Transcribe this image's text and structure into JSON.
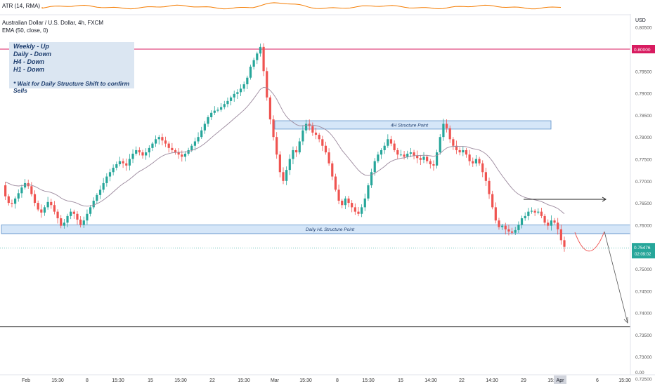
{
  "chart_data": {
    "type": "candlestick",
    "symbol_title": "Australian Dollar / U.S. Dollar, 4h, FXCM",
    "indicators": {
      "atr_label": "ATR (14, RMA)",
      "ema_label": "EMA (50, close, 0)"
    },
    "currency": "USD",
    "y_ticks": [
      "0.80500",
      "0.80000",
      "0.79500",
      "0.79000",
      "0.78500",
      "0.78000",
      "0.77500",
      "0.77000",
      "0.76500",
      "0.76000",
      "0.75500",
      "0.75000",
      "0.74500",
      "0.74000",
      "0.73500",
      "0.73000",
      "0.72500",
      "0.00"
    ],
    "y_tick_values": [
      0.805,
      0.8,
      0.795,
      0.79,
      0.785,
      0.78,
      0.775,
      0.77,
      0.765,
      0.76,
      0.755,
      0.75,
      0.745,
      0.74,
      0.735,
      0.73,
      0.725
    ],
    "x_ticks": [
      "Feb",
      "15:30",
      "8",
      "15:30",
      "15",
      "15:30",
      "22",
      "15:30",
      "Mar",
      "15:30",
      "8",
      "15:30",
      "15",
      "14:30",
      "22",
      "14:30",
      "29",
      "15:30",
      "Apr",
      "6",
      "15:30"
    ],
    "price_labels": {
      "resistance": "0.80000",
      "current": "0.75476",
      "countdown": "02:09:02"
    },
    "levels": {
      "resistance": 0.8,
      "support_line": 0.7368,
      "current": 0.75476
    },
    "zones": [
      {
        "label": "4H Structure Point",
        "top": 0.7837,
        "bottom": 0.7818
      },
      {
        "label": "Daily HL Structure Point",
        "top": 0.76,
        "bottom": 0.758
      }
    ],
    "note": {
      "lines": [
        "Weekly - Up",
        "Daily    - Down",
        "H4       - Down",
        "H1       - Down"
      ],
      "footer": "* Wait for Daily Structure Shift to confirm Sells"
    },
    "price_path": [
      0.769,
      0.7665,
      0.765,
      0.7648,
      0.766,
      0.7672,
      0.7685,
      0.7695,
      0.7688,
      0.767,
      0.765,
      0.7635,
      0.7628,
      0.764,
      0.7652,
      0.7645,
      0.763,
      0.7615,
      0.7598,
      0.7605,
      0.762,
      0.763,
      0.7625,
      0.7612,
      0.76,
      0.761,
      0.7625,
      0.764,
      0.7655,
      0.7668,
      0.768,
      0.7695,
      0.771,
      0.772,
      0.773,
      0.7738,
      0.7745,
      0.774,
      0.7735,
      0.775,
      0.7762,
      0.777,
      0.7765,
      0.7758,
      0.7765,
      0.7775,
      0.7785,
      0.7795,
      0.78,
      0.7792,
      0.7785,
      0.7775,
      0.777,
      0.7765,
      0.776,
      0.7755,
      0.7762,
      0.777,
      0.778,
      0.779,
      0.78,
      0.7815,
      0.783,
      0.7845,
      0.7855,
      0.786,
      0.7862,
      0.7868,
      0.7875,
      0.7882,
      0.789,
      0.7898,
      0.7902,
      0.791,
      0.792,
      0.7935,
      0.796,
      0.7975,
      0.799,
      0.8005,
      0.795,
      0.789,
      0.784,
      0.78,
      0.776,
      0.772,
      0.77,
      0.7725,
      0.775,
      0.777,
      0.7765,
      0.779,
      0.7815,
      0.783,
      0.7825,
      0.781,
      0.7805,
      0.7795,
      0.778,
      0.7765,
      0.774,
      0.771,
      0.768,
      0.7655,
      0.7645,
      0.766,
      0.765,
      0.764,
      0.763,
      0.7625,
      0.764,
      0.766,
      0.769,
      0.772,
      0.7745,
      0.776,
      0.777,
      0.778,
      0.7795,
      0.7785,
      0.777,
      0.776,
      0.776,
      0.7755,
      0.7762,
      0.7765,
      0.7758,
      0.7752,
      0.7748,
      0.7755,
      0.7745,
      0.7738,
      0.7735,
      0.7765,
      0.78,
      0.783,
      0.782,
      0.7795,
      0.778,
      0.777,
      0.7765,
      0.777,
      0.776,
      0.7745,
      0.774,
      0.775,
      0.774,
      0.772,
      0.77,
      0.767,
      0.764,
      0.761,
      0.7595,
      0.7598,
      0.759,
      0.7585,
      0.7582,
      0.7588,
      0.76,
      0.7615,
      0.762,
      0.763,
      0.7632,
      0.7628,
      0.763,
      0.762,
      0.7605,
      0.7598,
      0.761,
      0.7605,
      0.759,
      0.7565,
      0.755
    ]
  }
}
